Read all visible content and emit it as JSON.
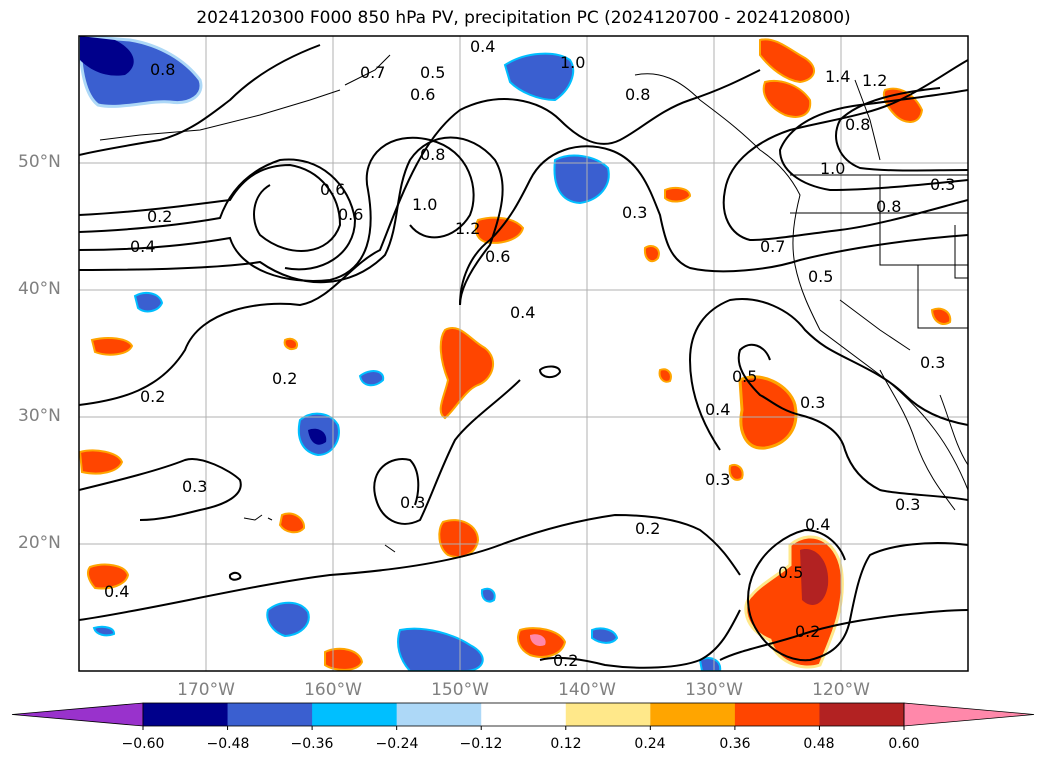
{
  "title": "2024120300 F000 850 hPa PV, precipitation PC (2024120700 - 2024120800)",
  "map": {
    "lat_labels": [
      "50°N",
      "40°N",
      "30°N",
      "20°N"
    ],
    "lon_labels": [
      "170°W",
      "160°W",
      "150°W",
      "140°W",
      "130°W",
      "120°W"
    ],
    "contour_labels": [
      "0.8",
      "0.4",
      "0.7",
      "0.6",
      "0.5",
      "1.0",
      "0.8",
      "0.6",
      "0.2",
      "0.4",
      "0.2",
      "0.6",
      "1.0",
      "1.2",
      "0.6",
      "0.8",
      "0.3",
      "0.4",
      "0.7",
      "0.5",
      "1.0",
      "0.8",
      "1.4",
      "1.2",
      "0.8",
      "0.3",
      "0.2",
      "0.5",
      "0.4",
      "0.3",
      "0.3",
      "0.3",
      "0.3",
      "0.4",
      "0.2",
      "0.3",
      "0.4",
      "0.5",
      "0.2",
      "0.2",
      "0.3"
    ],
    "colors": {
      "land_line": "#000000",
      "grid": "#b0b0b0",
      "contour": "#000000",
      "pos_light": "#ffe88a",
      "pos_mid": "#ffa500",
      "pos_strong": "#ff4500",
      "pos_max": "#b22222",
      "neg_light": "#add8f7",
      "neg_mid": "#00bfff",
      "neg_strong": "#3a5fd0",
      "neg_max": "#00008b"
    }
  },
  "colorbar": {
    "ticks": [
      "−0.60",
      "−0.48",
      "−0.36",
      "−0.24",
      "−0.12",
      "0.12",
      "0.24",
      "0.36",
      "0.48",
      "0.60"
    ],
    "colors": [
      "#9932cc",
      "#00008b",
      "#3a5fd0",
      "#00bfff",
      "#add8f7",
      "#ffffff",
      "#ffe88a",
      "#ffa500",
      "#ff4500",
      "#b22222",
      "#ff88aa"
    ]
  }
}
